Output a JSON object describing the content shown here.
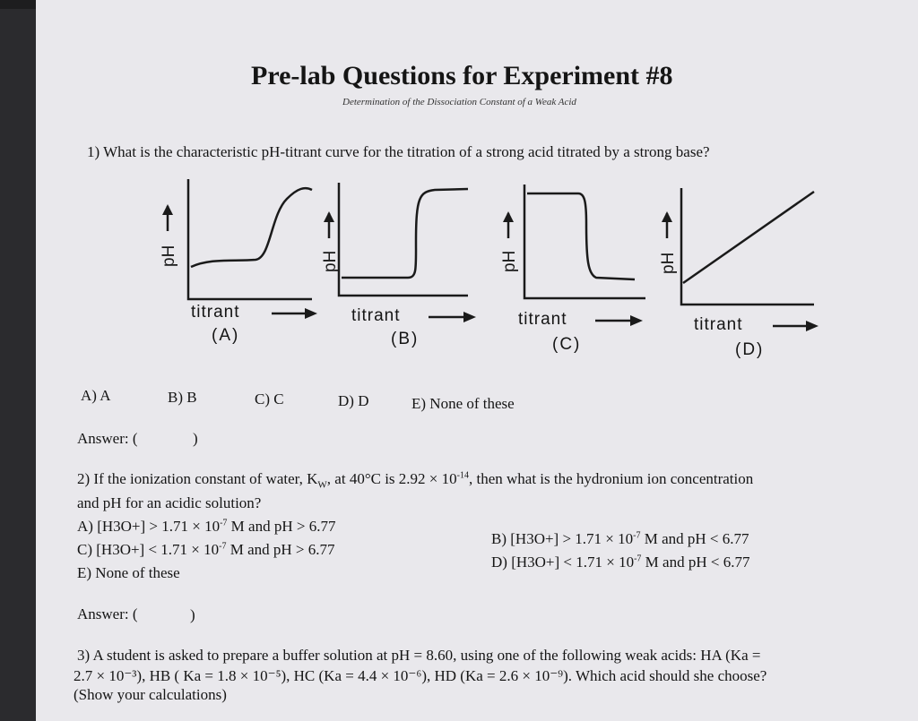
{
  "header": {
    "title": "Pre-lab Questions for Experiment #8",
    "subtitle": "Determination of the Dissociation Constant of a Weak Acid"
  },
  "q1": {
    "question": "1) What is the characteristic pH-titrant curve for the titration of a strong acid titrated by a strong base?",
    "y_axis_label": "pH",
    "x_axis_label": "titrant",
    "graphs": [
      "(A)",
      "(B)",
      "(C)",
      "(D)"
    ],
    "choices": [
      "A) A",
      "B) B",
      "C) C",
      "D) D",
      "E) None of these"
    ],
    "answer_label": "Answer: (",
    "answer_close": ")"
  },
  "q2": {
    "line1_pre": "2) If the ionization constant of water, K",
    "line1_sub": "W",
    "line1_mid": ", at 40°C is 2.92 × 10",
    "line1_exp": "-14",
    "line1_post": ", then what is the hydronium ion concentration",
    "line2": "and pH for an acidic solution?",
    "choice_a_pre": "A) [H3O+] > 1.71 × 10",
    "choice_a_post": " M and pH > 6.77",
    "choice_b_pre": "B) [H3O+] > 1.71 × 10",
    "choice_b_post": " M and pH < 6.77",
    "choice_c_pre": "C) [H3O+] < 1.71 × 10",
    "choice_c_post": " M and pH > 6.77",
    "choice_d_pre": "D) [H3O+] < 1.71 × 10",
    "choice_d_post": " M and pH < 6.77",
    "exp": "-7",
    "choice_e": "E) None of these",
    "answer_label": "Answer: (",
    "answer_close": ")"
  },
  "q3": {
    "line1": "3) A student is asked to prepare a buffer solution at pH = 8.60, using one of the following weak acids: HA (Ka =",
    "line2": "2.7 × 10⁻³), HB ( Ka = 1.8 × 10⁻⁵), HC (Ka = 4.4 × 10⁻⁶), HD (Ka = 2.6 × 10⁻⁹). Which acid should she choose?",
    "line3": "(Show your calculations)"
  }
}
